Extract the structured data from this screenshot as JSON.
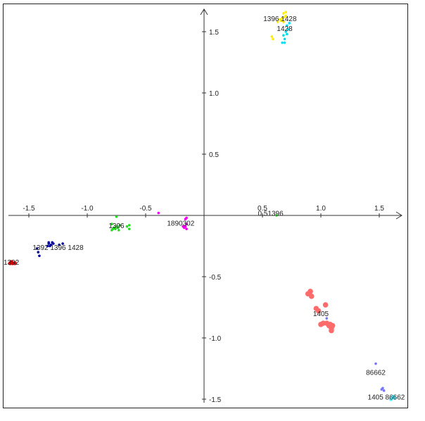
{
  "chart_data": {
    "type": "scatter",
    "title": "",
    "xlabel": "",
    "ylabel": "",
    "xlim": [
      -1.7,
      1.7
    ],
    "ylim": [
      -1.55,
      1.7
    ],
    "grid": false,
    "legend": "none",
    "x_ticks": [
      "-1.5",
      "-1.0",
      "-0.5",
      "0.5",
      "1.0",
      "1.5"
    ],
    "x_tick_values": [
      -1.5,
      -1.0,
      -0.5,
      0.5,
      1.0,
      1.5
    ],
    "y_ticks": [
      "1.5",
      "1.0",
      "0.5",
      "-0.5",
      "-1.0",
      "-1.5"
    ],
    "y_tick_values": [
      1.5,
      1.0,
      0.5,
      -0.5,
      -1.0,
      -1.5
    ],
    "series": [
      {
        "color": "#ffee00",
        "size": "small",
        "points": [
          [
            0.68,
            1.65
          ],
          [
            0.69,
            1.62
          ],
          [
            0.67,
            1.61
          ],
          [
            0.66,
            1.59
          ],
          [
            0.7,
            1.63
          ],
          [
            0.68,
            1.58
          ],
          [
            0.63,
            1.58
          ],
          [
            0.65,
            1.6
          ],
          [
            0.58,
            1.46
          ],
          [
            0.59,
            1.44
          ],
          [
            0.7,
            1.66
          ]
        ]
      },
      {
        "color": "#00e0f0",
        "size": "small",
        "points": [
          [
            0.71,
            1.55
          ],
          [
            0.72,
            1.52
          ],
          [
            0.7,
            1.5
          ],
          [
            0.71,
            1.48
          ],
          [
            0.68,
            1.47
          ],
          [
            0.69,
            1.44
          ],
          [
            0.67,
            1.41
          ],
          [
            0.69,
            1.41
          ],
          [
            0.73,
            1.57
          ]
        ]
      },
      {
        "color": "#22dd22",
        "size": "small",
        "points": [
          [
            -0.75,
            -0.09
          ],
          [
            -0.74,
            -0.1
          ],
          [
            -0.76,
            -0.11
          ],
          [
            -0.73,
            -0.12
          ],
          [
            -0.78,
            -0.11
          ],
          [
            -0.79,
            -0.12
          ],
          [
            -0.77,
            -0.1
          ],
          [
            -0.72,
            -0.08
          ],
          [
            -0.66,
            -0.09
          ],
          [
            -0.64,
            -0.08
          ],
          [
            -0.64,
            -0.11
          ],
          [
            -0.75,
            -0.01
          ],
          [
            -0.79,
            -0.07
          ],
          [
            0.62,
            0.0
          ]
        ]
      },
      {
        "color": "#ee00ee",
        "size": "small",
        "points": [
          [
            -0.39,
            0.02
          ],
          [
            -0.17,
            -0.1
          ],
          [
            -0.16,
            -0.09
          ],
          [
            -0.15,
            -0.07
          ],
          [
            -0.18,
            -0.09
          ],
          [
            -0.15,
            -0.11
          ],
          [
            -0.16,
            -0.03
          ],
          [
            -0.15,
            -0.02
          ]
        ]
      },
      {
        "color": "#000099",
        "size": "small",
        "points": [
          [
            -1.42,
            -0.3
          ],
          [
            -1.41,
            -0.33
          ],
          [
            -1.43,
            -0.27
          ],
          [
            -1.34,
            -0.25
          ],
          [
            -1.33,
            -0.23
          ],
          [
            -1.32,
            -0.25
          ],
          [
            -1.31,
            -0.24
          ],
          [
            -1.3,
            -0.22
          ],
          [
            -1.33,
            -0.22
          ],
          [
            -1.29,
            -0.23
          ],
          [
            -1.24,
            -0.24
          ],
          [
            -1.21,
            -0.23
          ]
        ]
      },
      {
        "color": "#ff0000",
        "size": "medium",
        "points": [
          [
            -1.66,
            -0.39
          ],
          [
            -1.64,
            -0.39
          ],
          [
            -1.62,
            -0.39
          ],
          [
            -1.65,
            -0.38
          ]
        ]
      },
      {
        "color": "#ff6b6b",
        "size": "large",
        "points": [
          [
            0.89,
            -0.64
          ],
          [
            0.91,
            -0.62
          ],
          [
            0.92,
            -0.66
          ],
          [
            0.96,
            -0.76
          ],
          [
            0.98,
            -0.78
          ],
          [
            1.02,
            -0.88
          ],
          [
            1.0,
            -0.89
          ],
          [
            1.04,
            -0.73
          ],
          [
            1.05,
            -0.88
          ],
          [
            1.07,
            -0.9
          ],
          [
            1.09,
            -0.92
          ],
          [
            1.09,
            -0.94
          ],
          [
            1.1,
            -0.9
          ],
          [
            1.08,
            -0.89
          ]
        ]
      },
      {
        "color": "#7777ff",
        "size": "small",
        "points": [
          [
            1.05,
            -0.84
          ],
          [
            1.47,
            -1.21
          ],
          [
            1.53,
            -1.41
          ],
          [
            1.54,
            -1.43
          ],
          [
            1.52,
            -1.42
          ]
        ]
      },
      {
        "color": "#66eeff",
        "size": "medium",
        "points": [
          [
            1.6,
            -1.5
          ],
          [
            1.62,
            -1.48
          ],
          [
            1.63,
            -1.49
          ]
        ]
      }
    ],
    "annotations": [
      {
        "text": "1396 1428",
        "x": 0.65,
        "y": 1.61
      },
      {
        "text": "1428",
        "x": 0.69,
        "y": 1.53
      },
      {
        "text": "1396",
        "x": -0.75,
        "y": -0.08
      },
      {
        "text": "1890302",
        "x": -0.2,
        "y": -0.06
      },
      {
        "text": "0.51396",
        "x": 0.57,
        "y": 0.02
      },
      {
        "text": "1392 1396 1428",
        "x": -1.25,
        "y": -0.26
      },
      {
        "text": "1392",
        "x": -1.7,
        "y": -0.38
      },
      {
        "text": "1405",
        "x": 1.0,
        "y": -0.8
      },
      {
        "text": "86662",
        "x": 1.47,
        "y": -1.28
      },
      {
        "text": "1405 86662",
        "x": 1.56,
        "y": -1.48
      }
    ]
  }
}
